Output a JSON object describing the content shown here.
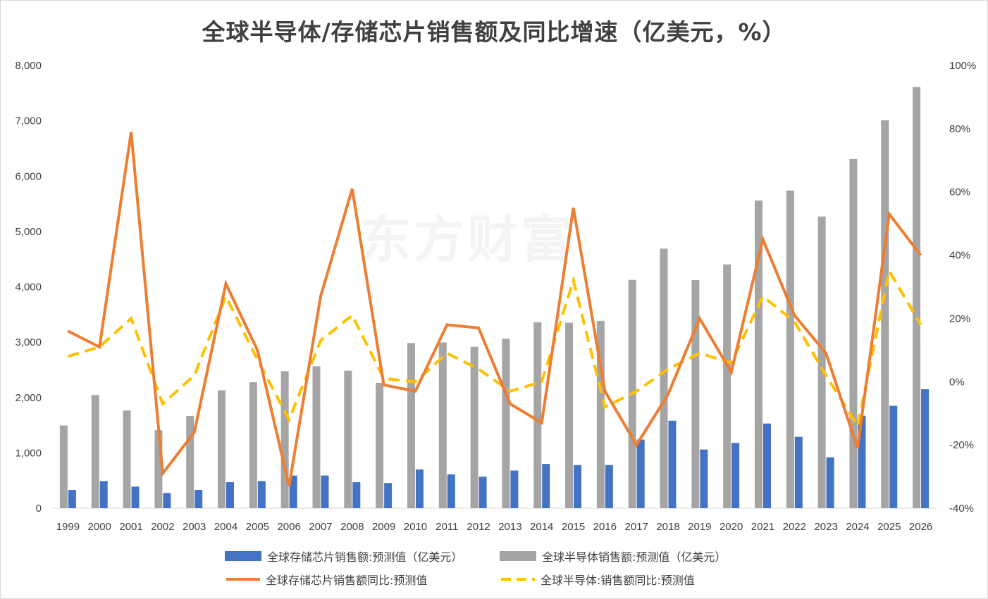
{
  "chart_data": {
    "type": "bar",
    "title": "全球半导体/存储芯片销售额及同比增速（亿美元，%）",
    "watermark": "东方财富",
    "categories": [
      "1999",
      "2000",
      "2001",
      "2002",
      "2003",
      "2004",
      "2005",
      "2006",
      "2007",
      "2008",
      "2009",
      "2010",
      "2011",
      "2012",
      "2013",
      "2014",
      "2015",
      "2016",
      "2017",
      "2018",
      "2019",
      "2020",
      "2021",
      "2022",
      "2023",
      "2024",
      "2025",
      "2026"
    ],
    "y_left": {
      "ylim": [
        0,
        8000
      ],
      "ticks": [
        "0",
        "1,000",
        "2,000",
        "3,000",
        "4,000",
        "5,000",
        "6,000",
        "7,000",
        "8,000"
      ]
    },
    "y_right": {
      "ylim": [
        -40,
        100
      ],
      "ticks": [
        "-40%",
        "-20%",
        "0%",
        "20%",
        "40%",
        "60%",
        "80%",
        "100%"
      ]
    },
    "series": [
      {
        "name": "全球存储芯片销售额:预测值（亿美元）",
        "type": "bar",
        "axis": "left",
        "color": "#4472c4",
        "values": [
          330,
          490,
          390,
          275,
          330,
          470,
          490,
          590,
          590,
          470,
          455,
          700,
          610,
          570,
          680,
          800,
          780,
          780,
          1240,
          1580,
          1060,
          1180,
          1530,
          1290,
          920,
          1670,
          1850,
          2150
        ]
      },
      {
        "name": "全球半导体销售额:预测值（亿美元）",
        "type": "bar",
        "axis": "left",
        "color": "#a5a5a5",
        "values": [
          1495,
          2045,
          1765,
          1410,
          1665,
          2130,
          2275,
          2475,
          2565,
          2485,
          2265,
          2985,
          2995,
          2915,
          3060,
          3360,
          3350,
          3385,
          4125,
          4690,
          4120,
          4405,
          5560,
          5740,
          5270,
          6310,
          7010,
          7610
        ]
      },
      {
        "name": "全球存储芯片销售额同比:预测值",
        "type": "line",
        "axis": "right",
        "color": "#ed7d31",
        "values": [
          16,
          11,
          79,
          -29,
          -16,
          31,
          10,
          -33,
          27,
          61,
          -1,
          -3,
          18,
          17,
          -7,
          -13,
          55,
          -3,
          -20,
          -4,
          20,
          3,
          45,
          21,
          9,
          -21,
          53,
          40
        ]
      },
      {
        "name": "全球半导体:销售额同比:预测值",
        "type": "line",
        "axis": "right",
        "color": "#ffc000",
        "dashed": true,
        "values": [
          8,
          11,
          20,
          -7,
          2,
          27,
          7,
          -12,
          13,
          21,
          1,
          0,
          9,
          4,
          -3,
          0,
          32,
          -8,
          -3,
          4,
          9,
          6,
          27,
          19,
          2,
          -14,
          35,
          18
        ]
      }
    ],
    "legend_position": "bottom",
    "grid": false
  }
}
